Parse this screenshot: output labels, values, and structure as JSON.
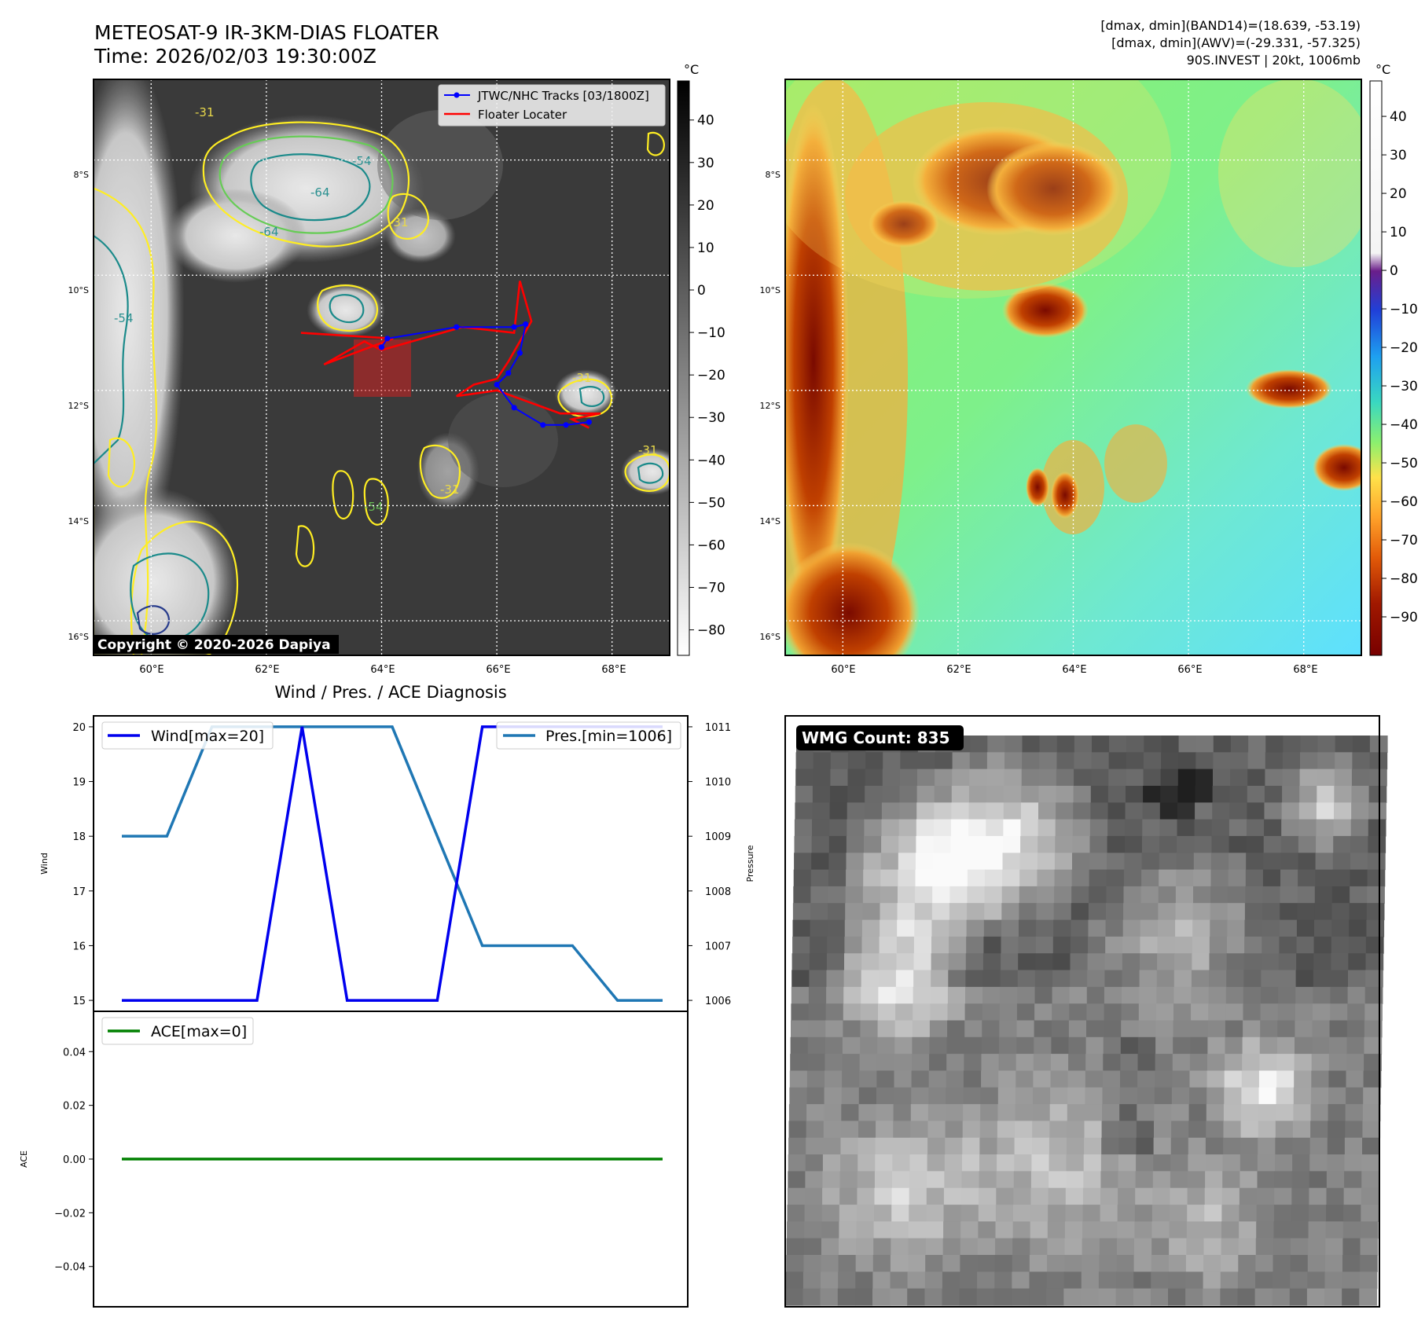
{
  "header": {
    "title": "METEOSAT-9 IR-3KM-DIAS FLOATER",
    "time": "Time: 2026/02/03 19:30:00Z",
    "info_lines": [
      "[dmax, dmin](BAND14)=(18.639, -53.19)",
      "[dmax, dmin](AWV)=(-29.331, -57.325)",
      "90S.INVEST | 20kt, 1006mb"
    ]
  },
  "colors": {
    "wind": "#0000ee",
    "pressure": "#1f77b4",
    "ace": "#008000",
    "track": "#0000ff",
    "locater": "#ff0000",
    "contour_yellow": "#ffee22",
    "contour_green": "#66cc55",
    "contour_teal": "#1a8a8a",
    "contour_navy": "#283c8c",
    "ir_background": "#3a3a3a",
    "awv_background": "#8cf06e"
  },
  "map": {
    "lat_labels": [
      "8°S",
      "10°S",
      "12°S",
      "14°S",
      "16°S"
    ],
    "lon_labels": [
      "60°E",
      "62°E",
      "64°E",
      "66°E",
      "68°E"
    ],
    "copyright": "Copyright © 2020-2026 Dapiya",
    "contour_labels": [
      "-31",
      "-54",
      "-64",
      "-64",
      "-31",
      "-31",
      "-54",
      "-54",
      "-31",
      "-31"
    ],
    "legend": {
      "track": "JTWC/NHC Tracks [03/1800Z]",
      "locater": "Floater Locater"
    },
    "track_points": [
      {
        "lon": 67.6,
        "lat": -12.55
      },
      {
        "lon": 67.2,
        "lat": -12.6
      },
      {
        "lon": 66.8,
        "lat": -12.6
      },
      {
        "lon": 66.3,
        "lat": -12.3
      },
      {
        "lon": 66.0,
        "lat": -11.9
      },
      {
        "lon": 66.2,
        "lat": -11.7
      },
      {
        "lon": 66.4,
        "lat": -11.35
      },
      {
        "lon": 66.5,
        "lat": -10.85
      },
      {
        "lon": 66.3,
        "lat": -10.9
      },
      {
        "lon": 65.3,
        "lat": -10.9
      },
      {
        "lon": 64.1,
        "lat": -11.1
      },
      {
        "lon": 64.0,
        "lat": -11.25
      }
    ],
    "locater_points": [
      {
        "lon": 62.6,
        "lat": -11.0
      },
      {
        "lon": 64.2,
        "lat": -11.1
      },
      {
        "lon": 63.0,
        "lat": -11.55
      },
      {
        "lon": 63.7,
        "lat": -11.15
      },
      {
        "lon": 64.0,
        "lat": -11.3
      },
      {
        "lon": 65.4,
        "lat": -10.9
      },
      {
        "lon": 66.3,
        "lat": -11.0
      },
      {
        "lon": 66.4,
        "lat": -10.1
      },
      {
        "lon": 66.6,
        "lat": -10.8
      },
      {
        "lon": 66.2,
        "lat": -11.5
      },
      {
        "lon": 66.0,
        "lat": -11.8
      },
      {
        "lon": 65.6,
        "lat": -11.9
      },
      {
        "lon": 65.3,
        "lat": -12.1
      },
      {
        "lon": 66.0,
        "lat": -12.0
      },
      {
        "lon": 67.1,
        "lat": -12.4
      },
      {
        "lon": 67.8,
        "lat": -12.4
      },
      {
        "lon": 67.3,
        "lat": -12.5
      },
      {
        "lon": 67.6,
        "lat": -12.65
      }
    ]
  },
  "colorbars": {
    "unit": "°C",
    "ir_ticks": [
      "40",
      "30",
      "20",
      "10",
      "0",
      "−10",
      "−20",
      "−30",
      "−40",
      "−50",
      "−60",
      "−70",
      "−80"
    ],
    "awv_ticks": [
      "40",
      "30",
      "20",
      "10",
      "0",
      "−10",
      "−20",
      "−30",
      "−40",
      "−50",
      "−60",
      "−70",
      "−80",
      "−90"
    ]
  },
  "wmg": {
    "label": "WMG Count: 835"
  },
  "chart_data": [
    {
      "type": "line",
      "title": "Wind / Pres. / ACE Diagnosis",
      "ylabel": "Wind",
      "y2label": "Pressure",
      "ylim": [
        14.8,
        20.2
      ],
      "y2lim": [
        1005.8,
        1011.2
      ],
      "y_ticks": [
        "15",
        "16",
        "17",
        "18",
        "19",
        "20"
      ],
      "y2_ticks": [
        "1006",
        "1007",
        "1008",
        "1009",
        "1010",
        "1011"
      ],
      "series": [
        {
          "name": "Wind[max=20]",
          "values": [
            15,
            15,
            15,
            15,
            20,
            15,
            15,
            15,
            20,
            20,
            20,
            20,
            20
          ]
        },
        {
          "name": "Pres.[min=1006]",
          "values": [
            1009,
            1009,
            1011,
            1011,
            1011,
            1011,
            1011,
            1009,
            1007,
            1007,
            1007,
            1006,
            1006
          ]
        }
      ]
    },
    {
      "type": "line",
      "ylabel": "ACE",
      "ylim": [
        -0.055,
        0.055
      ],
      "y_ticks": [
        "0.04",
        "0.02",
        "0.00",
        "−0.02",
        "−0.04"
      ],
      "series": [
        {
          "name": "ACE[max=0]",
          "values": [
            0,
            0,
            0,
            0,
            0,
            0,
            0,
            0,
            0,
            0,
            0,
            0,
            0
          ]
        }
      ]
    }
  ]
}
